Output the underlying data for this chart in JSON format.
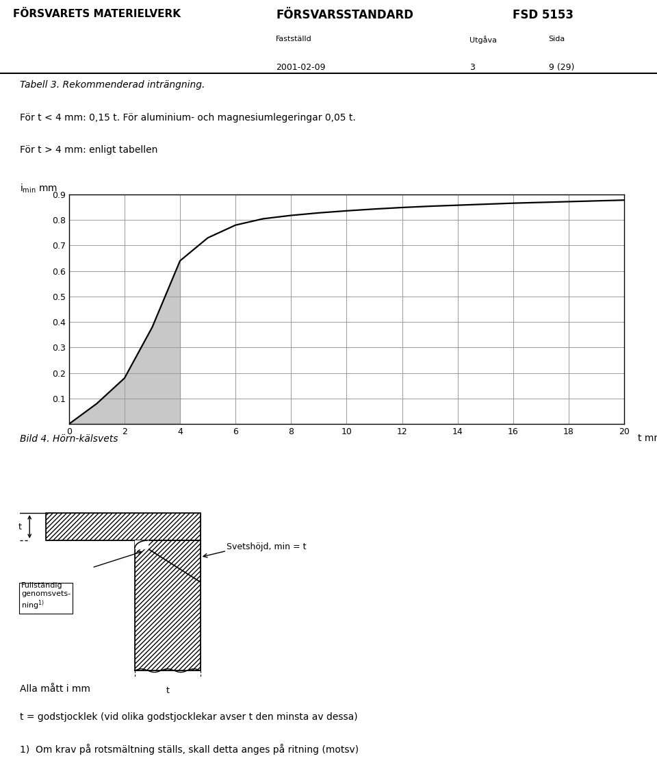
{
  "header_left": "FÖRSVARETS MATERIELVERK",
  "header_center": "FÖRSVARSSTANDARD",
  "header_right": "FSD 5153",
  "sub_label1": "Fastställd",
  "sub_label2": "Utgåva",
  "sub_label3": "Sida",
  "sub_val1": "2001-02-09",
  "sub_val2": "3",
  "sub_val3": "9 (29)",
  "table_title": "Tabell 3. Rekommenderad inträngning.",
  "line1": "För t < 4 mm: 0,15 t. För aluminium- och magnesiumlegeringar 0,05 t.",
  "line2": "För t > 4 mm: enligt tabellen",
  "xlabel": "t mm",
  "xticks": [
    0,
    2,
    4,
    6,
    8,
    10,
    12,
    14,
    16,
    18,
    20
  ],
  "yticks": [
    0.1,
    0.2,
    0.3,
    0.4,
    0.5,
    0.6,
    0.7,
    0.8,
    0.9
  ],
  "xlim": [
    0,
    20
  ],
  "ylim": [
    0,
    0.9
  ],
  "curve_x": [
    0,
    1,
    2,
    3,
    4,
    5,
    6,
    7,
    8,
    9,
    10,
    11,
    12,
    13,
    14,
    15,
    16,
    17,
    18,
    19,
    20
  ],
  "curve_y": [
    0.0,
    0.08,
    0.18,
    0.38,
    0.64,
    0.73,
    0.78,
    0.805,
    0.818,
    0.828,
    0.836,
    0.843,
    0.849,
    0.854,
    0.858,
    0.862,
    0.866,
    0.869,
    0.872,
    0.875,
    0.878
  ],
  "bild_caption": "Bild 4. Hörn-kälsvets",
  "fullstandig_line1": "Fullständig",
  "fullstandig_line2": "genomsvets-",
  "fullstandig_line3": "ning",
  "fullstandig_sup": "1)",
  "svetshojd_text": "Svetshöjd, min = t",
  "alla_matt": "Alla mått i mm",
  "footnote1": "t = godstjocklek (vid olika godstjocklekar avser t den minsta av dessa)",
  "footnote2": "1)  Om krav på rotsmältning ställs, skall detta anges på ritning (motsv)",
  "bg_color": "#ffffff",
  "curve_color": "#000000",
  "shade_color": "#c8c8c8",
  "grid_color": "#999999"
}
